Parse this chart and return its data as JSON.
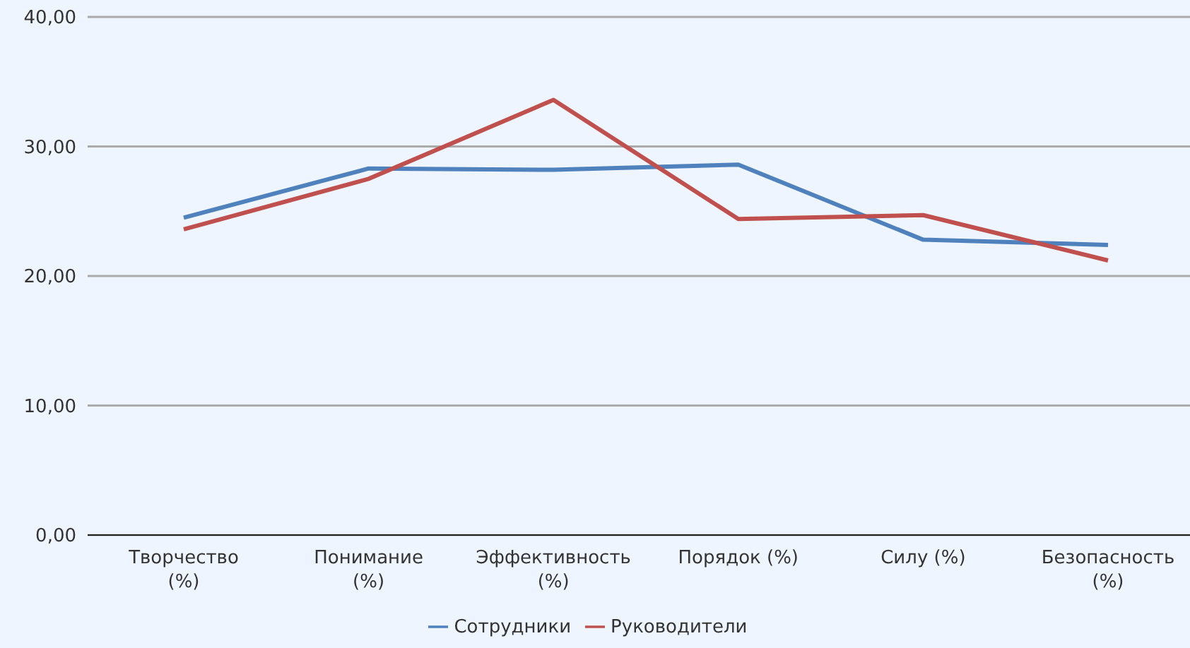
{
  "chart_data": {
    "type": "line",
    "categories": [
      "Творчество (%)",
      "Понимание (%)",
      "Эффективность (%)",
      "Порядок (%)",
      "Силу (%)",
      "Безопасность (%)"
    ],
    "series": [
      {
        "name": "Сотрудники",
        "color": "#4f81bd",
        "values": [
          24.5,
          28.3,
          28.2,
          28.6,
          22.8,
          22.4
        ]
      },
      {
        "name": "Руководители",
        "color": "#c0504d",
        "values": [
          23.6,
          27.5,
          33.6,
          24.4,
          24.7,
          21.2
        ]
      }
    ],
    "ylim": [
      0,
      40
    ],
    "yticks": [
      {
        "value": 0,
        "label": "0,00"
      },
      {
        "value": 10,
        "label": "10,00"
      },
      {
        "value": 20,
        "label": "20,00"
      },
      {
        "value": 30,
        "label": "30,00"
      },
      {
        "value": 40,
        "label": "40,00"
      }
    ],
    "grid": "y",
    "legend": "bottom",
    "marker": "none",
    "line_style": "solid"
  }
}
